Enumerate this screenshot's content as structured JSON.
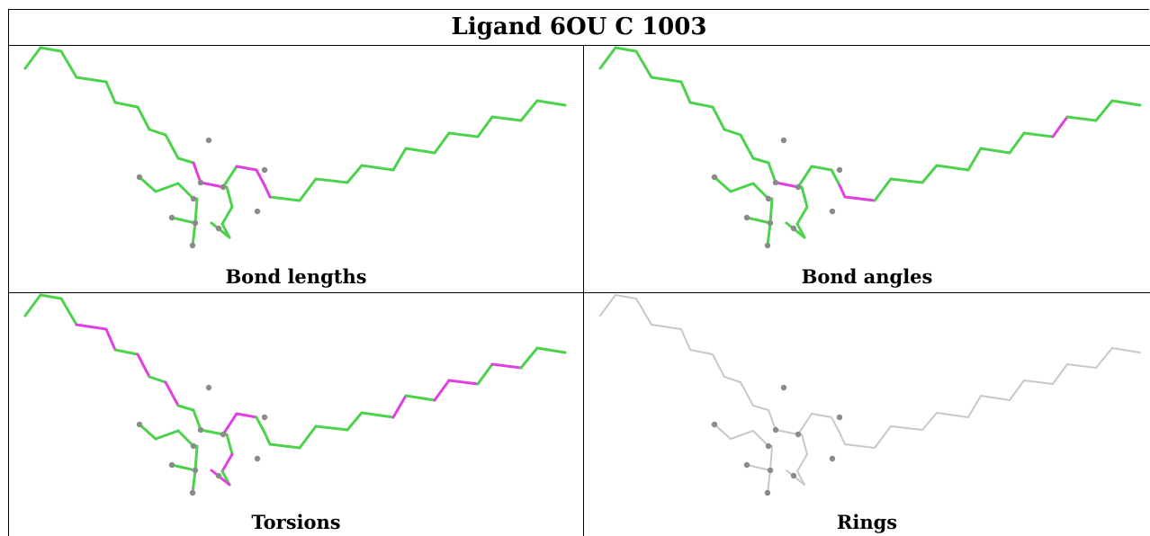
{
  "title": "Ligand 6OU C 1003",
  "colors": {
    "good": "#4cd24c",
    "outlier": "#e040e0",
    "neutral": "#c8c8c8",
    "atom": "#8a8a8a"
  },
  "panels": [
    {
      "caption": "Bond lengths",
      "mode": "bonds"
    },
    {
      "caption": "Bond angles",
      "mode": "angles"
    },
    {
      "caption": "Torsions",
      "mode": "torsions"
    },
    {
      "caption": "Rings",
      "mode": "rings"
    }
  ]
}
